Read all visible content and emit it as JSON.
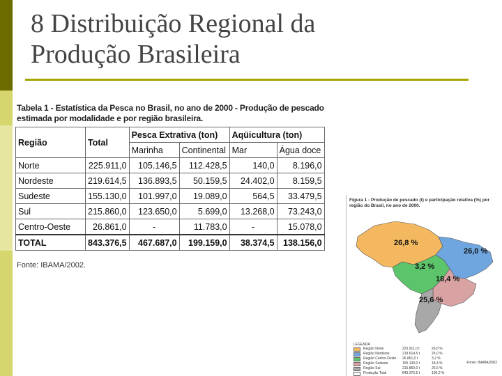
{
  "slide": {
    "title_line1": "8 Distribuição Regional da",
    "title_line2": "Produção Brasileira"
  },
  "table": {
    "caption": "Tabela 1 - Estatística da Pesca no Brasil, no ano de 2000 - Produção de pescado estimada por modalidade e por região brasileira.",
    "headers": {
      "regiao": "Região",
      "total": "Total",
      "extrativa": "Pesca Extrativa (ton)",
      "aquicultura": "Aqüicultura (ton)",
      "marinha": "Marinha",
      "continental": "Continental",
      "mar": "Mar",
      "agua_doce": "Água doce"
    },
    "rows": [
      {
        "regiao": "Norte",
        "total": "225.911,0",
        "marinha": "105.146,5",
        "continental": "112.428,5",
        "mar": "140,0",
        "agua_doce": "8.196,0"
      },
      {
        "regiao": "Nordeste",
        "total": "219.614,5",
        "marinha": "136.893,5",
        "continental": "50.159,5",
        "mar": "24.402,0",
        "agua_doce": "8.159,5"
      },
      {
        "regiao": "Sudeste",
        "total": "155.130,0",
        "marinha": "101.997,0",
        "continental": "19.089,0",
        "mar": "564,5",
        "agua_doce": "33.479,5"
      },
      {
        "regiao": "Sul",
        "total": "215.860,0",
        "marinha": "123.650,0",
        "continental": "5.699,0",
        "mar": "13.268,0",
        "agua_doce": "73.243,0"
      },
      {
        "regiao": "Centro-Oeste",
        "total": "26.861,0",
        "marinha": "-",
        "continental": "11.783,0",
        "mar": "-",
        "agua_doce": "15.078,0"
      }
    ],
    "total_row": {
      "regiao": "TOTAL",
      "total": "843.376,5",
      "marinha": "467.687,0",
      "continental": "199.159,0",
      "mar": "38.374,5",
      "agua_doce": "138.156,0"
    },
    "source": "Fonte: IBAMA/2002."
  },
  "map": {
    "caption": "Figura 1 - Produção de pescado (t) e participação relativa (%) por região do Brasil, no ano de 2000.",
    "labels": {
      "norte": "26,8 %",
      "nordeste": "26,0 %",
      "centro_oeste": "3,2 %",
      "sudeste": "18,4 %",
      "sul": "25,6 %"
    },
    "colors": {
      "norte": "#f4b860",
      "nordeste": "#6fa6e0",
      "centro_oeste": "#5cc46a",
      "sudeste": "#d9a3a3",
      "sul": "#a8a8a8"
    },
    "legend_title": "LEGENDA",
    "legend": [
      {
        "name": "Região Norte",
        "value": "225.911,0 t",
        "pct": "26,8 %",
        "color": "#f4b860"
      },
      {
        "name": "Região Nordeste",
        "value": "219.614,5 t",
        "pct": "26,0 %",
        "color": "#6fa6e0"
      },
      {
        "name": "Região Centro-Oeste",
        "value": "26.861,0 t",
        "pct": "3,2 %",
        "color": "#5cc46a"
      },
      {
        "name": "Região Sudeste",
        "value": "155.130,0 t",
        "pct": "18,4 %",
        "color": "#d9a3a3"
      },
      {
        "name": "Região Sul",
        "value": "215.860,0 t",
        "pct": "25,6 %",
        "color": "#a8a8a8"
      },
      {
        "name": "Produção Total",
        "value": "843.376,5 t",
        "pct": "100,0 %",
        "color": "#ffffff"
      }
    ],
    "source": "Fonte: IBAMA/2002"
  }
}
